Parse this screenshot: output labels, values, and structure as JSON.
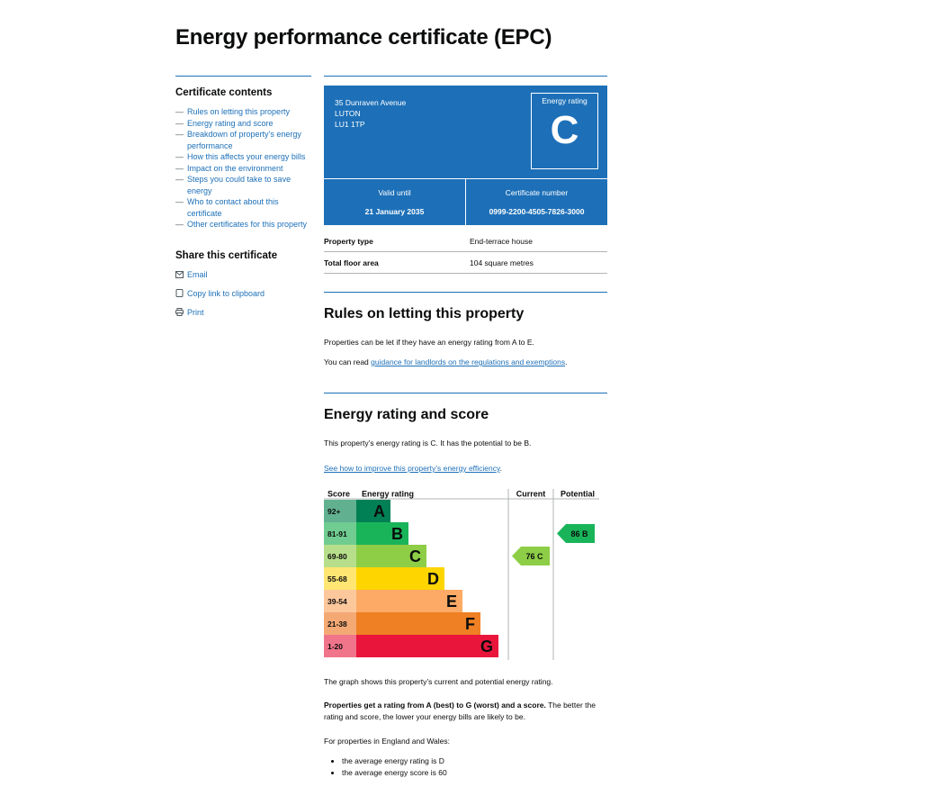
{
  "page": {
    "title": "Energy performance certificate (EPC)"
  },
  "sidebar": {
    "contents_heading": "Certificate contents",
    "contents": [
      "Rules on letting this property",
      "Energy rating and score",
      "Breakdown of property’s energy performance",
      "How this affects your energy bills",
      "Impact on the environment",
      "Steps you could take to save energy",
      "Who to contact about this certificate",
      "Other certificates for this property"
    ],
    "share_heading": "Share this certificate",
    "share": [
      {
        "label": "Email",
        "icon": "mail-icon"
      },
      {
        "label": "Copy link to clipboard",
        "icon": "copy-icon"
      },
      {
        "label": "Print",
        "icon": "printer-icon"
      }
    ]
  },
  "certificate": {
    "address": [
      "35 Dunraven Avenue",
      "LUTON",
      "LU1 1TP"
    ],
    "rating_label": "Energy rating",
    "rating": "C",
    "valid_label": "Valid until",
    "valid_until": "21 January 2035",
    "number_label": "Certificate number",
    "number": "0999-2200-4505-7826-3000",
    "accent_color": "#1d70b8"
  },
  "property": {
    "rows": [
      {
        "key": "Property type",
        "value": "End-terrace house"
      },
      {
        "key": "Total floor area",
        "value": "104 square metres"
      }
    ]
  },
  "letting": {
    "heading": "Rules on letting this property",
    "p1": "Properties can be let if they have an energy rating from A to E.",
    "p2_prefix": "You can read ",
    "p2_link": "guidance for landlords on the regulations and exemptions",
    "p2_suffix": "."
  },
  "energy": {
    "heading": "Energy rating and score",
    "p1": "This property’s energy rating is C. It has the potential to be B.",
    "link": "See how to improve this property’s energy efficiency",
    "link_suffix": ".",
    "graph_note": "The graph shows this property’s current and potential energy rating.",
    "rating_bold": "Properties get a rating from A (best) to G (worst) and a score.",
    "rating_rest": " The better the rating and score, the lower your energy bills are likely to be.",
    "england_wales": "For properties in England and Wales:",
    "bullets": [
      "the average energy rating is D",
      "the average energy score is 60"
    ]
  },
  "chart_data": {
    "type": "bar",
    "headers": {
      "score": "Score",
      "rating": "Energy rating",
      "current": "Current",
      "potential": "Potential"
    },
    "bands": [
      {
        "letter": "A",
        "range": "92+",
        "color": "#008054",
        "score_color": "#61b191"
      },
      {
        "letter": "B",
        "range": "81-91",
        "color": "#19b459",
        "score_color": "#70cc91"
      },
      {
        "letter": "C",
        "range": "69-80",
        "color": "#8dce46",
        "score_color": "#b7df8b"
      },
      {
        "letter": "D",
        "range": "55-68",
        "color": "#ffd500",
        "score_color": "#ffe673"
      },
      {
        "letter": "E",
        "range": "39-54",
        "color": "#fcaa65",
        "score_color": "#fdc79c"
      },
      {
        "letter": "F",
        "range": "21-38",
        "color": "#ef8023",
        "score_color": "#f4a975"
      },
      {
        "letter": "G",
        "range": "1-20",
        "color": "#e9153b",
        "score_color": "#f0748a"
      }
    ],
    "current": {
      "score": 76,
      "letter": "C",
      "label": "76 C"
    },
    "potential": {
      "score": 86,
      "letter": "B",
      "label": "86 B"
    }
  }
}
